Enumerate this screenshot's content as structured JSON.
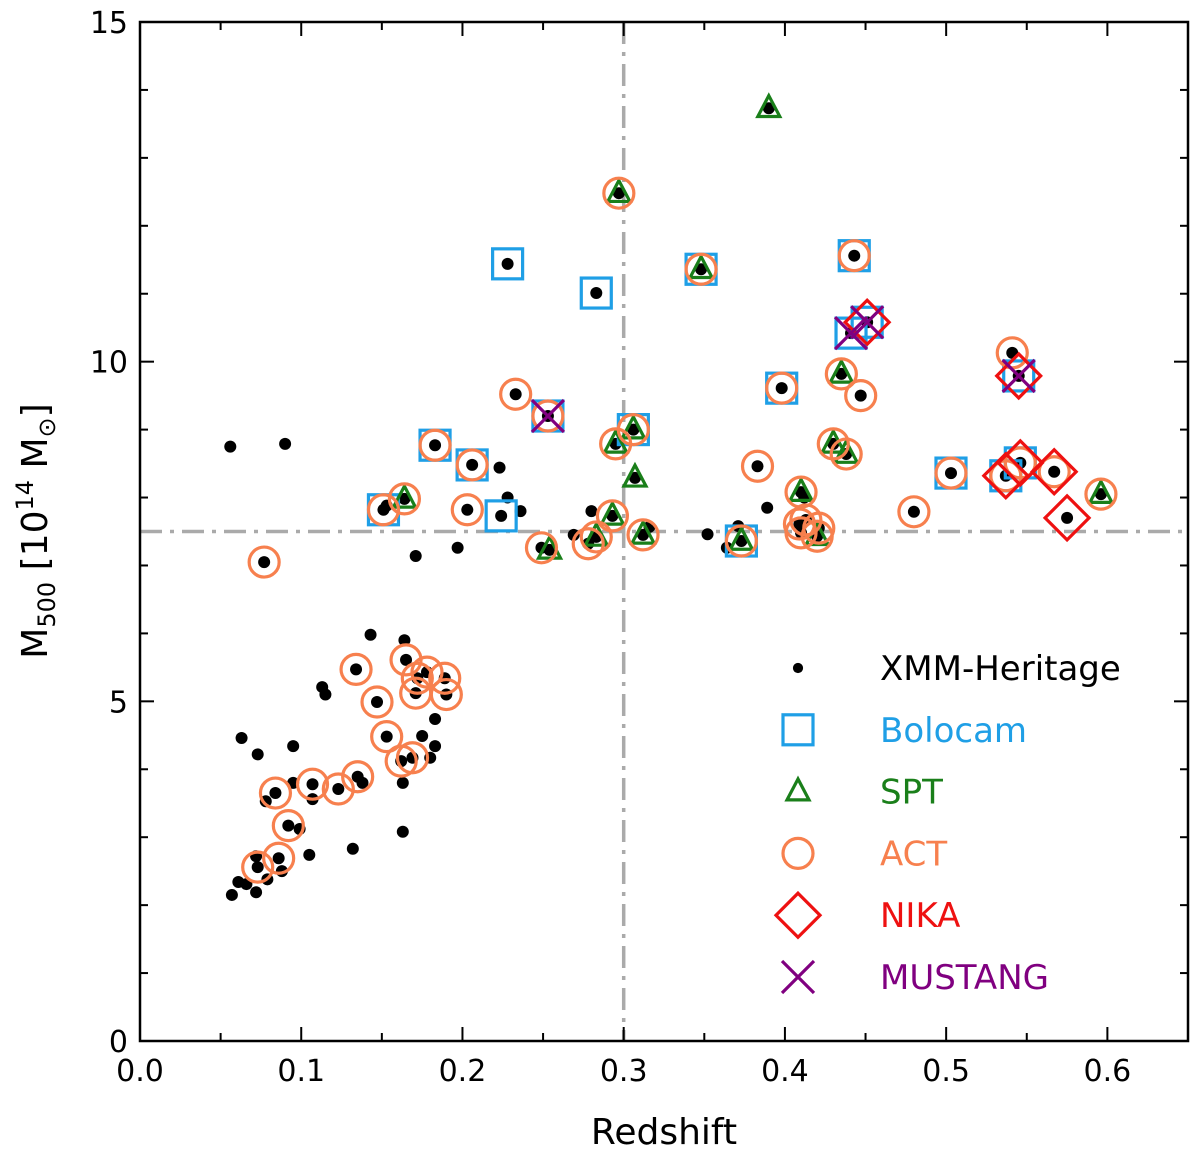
{
  "chart_data": {
    "type": "scatter",
    "xlabel": "Redshift",
    "ylabel": {
      "base": "M",
      "sub": "500",
      "pre": "[10",
      "sup": "14",
      "mid": " M",
      "sym": "⊙",
      "post": "]"
    },
    "xlim": [
      0.0,
      0.65
    ],
    "ylim": [
      0,
      15
    ],
    "xticks": [
      "0.0",
      "0.1",
      "0.2",
      "0.3",
      "0.4",
      "0.5",
      "0.6"
    ],
    "yticks": [
      "0",
      "5",
      "10",
      "15"
    ],
    "reference_lines": {
      "x": 0.3,
      "y": 7.5,
      "color": "#aaaaaa",
      "style": "dash-dot"
    },
    "legend_position": "lower-right",
    "series": [
      {
        "key": "X",
        "name": "XMM-Heritage",
        "marker": "dot",
        "color": "#000000",
        "text_color": "#000000"
      },
      {
        "key": "B",
        "name": "Bolocam",
        "marker": "square",
        "color": "#1f9fe6",
        "text_color": "#1f9fe6"
      },
      {
        "key": "S",
        "name": "SPT",
        "marker": "triangle",
        "color": "#1a7f1a",
        "text_color": "#1a7f1a"
      },
      {
        "key": "A",
        "name": "ACT",
        "marker": "circle",
        "color": "#f7804e",
        "text_color": "#f7804e"
      },
      {
        "key": "N",
        "name": "NIKA",
        "marker": "diamond",
        "color": "#ee1111",
        "text_color": "#ee1111"
      },
      {
        "key": "M",
        "name": "MUSTANG",
        "marker": "x",
        "color": "#800080",
        "text_color": "#800080"
      }
    ],
    "points": [
      [
        0.056,
        8.75,
        ""
      ],
      [
        0.09,
        8.79,
        ""
      ],
      [
        0.223,
        8.44,
        ""
      ],
      [
        0.228,
        8.0,
        ""
      ],
      [
        0.236,
        7.8,
        ""
      ],
      [
        0.171,
        7.14,
        ""
      ],
      [
        0.197,
        7.26,
        ""
      ],
      [
        0.269,
        7.45,
        ""
      ],
      [
        0.28,
        7.8,
        ""
      ],
      [
        0.316,
        7.57,
        ""
      ],
      [
        0.352,
        7.46,
        ""
      ],
      [
        0.371,
        7.58,
        ""
      ],
      [
        0.389,
        7.85,
        ""
      ],
      [
        0.364,
        7.26,
        ""
      ],
      [
        0.412,
        8.0,
        ""
      ],
      [
        0.153,
        7.88,
        ""
      ],
      [
        0.143,
        5.98,
        ""
      ],
      [
        0.164,
        5.9,
        ""
      ],
      [
        0.165,
        5.61,
        "A"
      ],
      [
        0.134,
        5.47,
        "A"
      ],
      [
        0.113,
        5.21,
        ""
      ],
      [
        0.115,
        5.1,
        ""
      ],
      [
        0.147,
        4.99,
        "A"
      ],
      [
        0.172,
        5.34,
        "A"
      ],
      [
        0.178,
        5.43,
        "A"
      ],
      [
        0.189,
        5.34,
        "A"
      ],
      [
        0.19,
        5.1,
        "A"
      ],
      [
        0.171,
        5.12,
        "A"
      ],
      [
        0.183,
        4.74,
        ""
      ],
      [
        0.063,
        4.46,
        ""
      ],
      [
        0.095,
        4.34,
        ""
      ],
      [
        0.073,
        4.22,
        ""
      ],
      [
        0.153,
        4.48,
        "A"
      ],
      [
        0.175,
        4.49,
        ""
      ],
      [
        0.183,
        4.34,
        ""
      ],
      [
        0.18,
        4.17,
        ""
      ],
      [
        0.162,
        4.12,
        "A"
      ],
      [
        0.169,
        4.17,
        "A"
      ],
      [
        0.163,
        3.8,
        ""
      ],
      [
        0.095,
        3.8,
        ""
      ],
      [
        0.107,
        3.78,
        "A"
      ],
      [
        0.107,
        3.56,
        ""
      ],
      [
        0.123,
        3.71,
        "A"
      ],
      [
        0.135,
        3.89,
        "A"
      ],
      [
        0.138,
        3.8,
        ""
      ],
      [
        0.084,
        3.65,
        "A"
      ],
      [
        0.078,
        3.53,
        ""
      ],
      [
        0.092,
        3.17,
        "A"
      ],
      [
        0.099,
        3.12,
        ""
      ],
      [
        0.163,
        3.08,
        ""
      ],
      [
        0.105,
        2.74,
        ""
      ],
      [
        0.132,
        2.83,
        ""
      ],
      [
        0.086,
        2.69,
        "A"
      ],
      [
        0.088,
        2.5,
        ""
      ],
      [
        0.073,
        2.56,
        "A"
      ],
      [
        0.072,
        2.72,
        ""
      ],
      [
        0.079,
        2.38,
        ""
      ],
      [
        0.061,
        2.34,
        ""
      ],
      [
        0.066,
        2.31,
        ""
      ],
      [
        0.072,
        2.19,
        ""
      ],
      [
        0.057,
        2.15,
        ""
      ],
      [
        0.077,
        7.05,
        "A"
      ],
      [
        0.151,
        7.82,
        "BA"
      ],
      [
        0.164,
        7.98,
        "SA"
      ],
      [
        0.183,
        8.77,
        "BA"
      ],
      [
        0.206,
        8.48,
        "BA"
      ],
      [
        0.203,
        7.82,
        "A"
      ],
      [
        0.224,
        7.73,
        "B"
      ],
      [
        0.233,
        9.52,
        "A"
      ],
      [
        0.253,
        9.2,
        "BAM"
      ],
      [
        0.228,
        11.44,
        "B"
      ],
      [
        0.283,
        11.01,
        "B"
      ],
      [
        0.249,
        7.26,
        "A"
      ],
      [
        0.254,
        7.23,
        "S"
      ],
      [
        0.278,
        7.32,
        "A"
      ],
      [
        0.283,
        7.42,
        "SA"
      ],
      [
        0.293,
        7.73,
        "SA"
      ],
      [
        0.295,
        8.79,
        "SA"
      ],
      [
        0.306,
        9.0,
        "BSA"
      ],
      [
        0.307,
        8.29,
        "S"
      ],
      [
        0.297,
        12.48,
        "SA"
      ],
      [
        0.312,
        7.45,
        "SA"
      ],
      [
        0.348,
        11.36,
        "BSA"
      ],
      [
        0.373,
        7.36,
        "BSA"
      ],
      [
        0.39,
        13.73,
        "S"
      ],
      [
        0.398,
        9.61,
        "BA"
      ],
      [
        0.383,
        8.46,
        "A"
      ],
      [
        0.41,
        8.08,
        "SA"
      ],
      [
        0.409,
        7.61,
        "A"
      ],
      [
        0.413,
        7.67,
        "A"
      ],
      [
        0.41,
        7.48,
        "A"
      ],
      [
        0.42,
        7.43,
        "SA"
      ],
      [
        0.421,
        7.55,
        "A"
      ],
      [
        0.43,
        8.79,
        "SA"
      ],
      [
        0.438,
        8.64,
        "SA"
      ],
      [
        0.435,
        9.82,
        "SA"
      ],
      [
        0.447,
        9.5,
        "A"
      ],
      [
        0.443,
        11.56,
        "BA"
      ],
      [
        0.441,
        10.42,
        "BM"
      ],
      [
        0.451,
        10.58,
        "BNM"
      ],
      [
        0.541,
        10.13,
        "A"
      ],
      [
        0.545,
        9.79,
        "BNM"
      ],
      [
        0.503,
        8.36,
        "BA"
      ],
      [
        0.537,
        8.32,
        "BNA"
      ],
      [
        0.546,
        8.51,
        "BNA"
      ],
      [
        0.567,
        8.38,
        "NA"
      ],
      [
        0.48,
        7.79,
        "A"
      ],
      [
        0.575,
        7.7,
        "N"
      ],
      [
        0.596,
        8.05,
        "SA"
      ]
    ]
  }
}
